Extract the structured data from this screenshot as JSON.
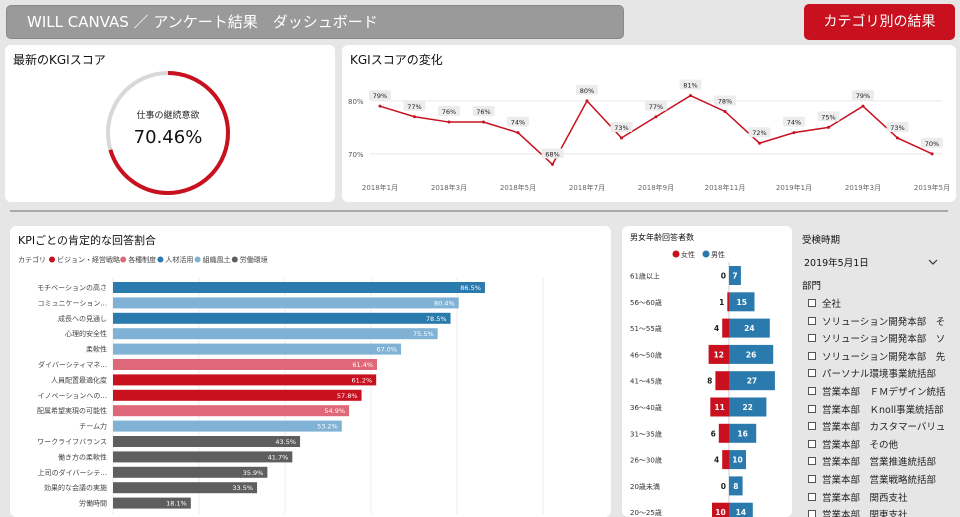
{
  "header": {
    "title": "WILL CANVAS ／ アンケート結果　ダッシュボード",
    "category_button": "カテゴリ別の結果"
  },
  "colors": {
    "accent": "#c8101e",
    "blue": "#2a7aad",
    "light_blue": "#7fb2d4",
    "pink": "#de6877",
    "gray": "#5e5e5e"
  },
  "kgi_latest": {
    "title": "最新のKGIスコア",
    "label": "仕事の継続意欲",
    "value": "70.46%",
    "fraction": 0.7046
  },
  "kgi_trend": {
    "title": "KGIスコアの変化",
    "y_ticks": [
      "80%",
      "70%"
    ],
    "x_ticks": [
      "2018年1月",
      "2018年3月",
      "2018年5月",
      "2018年7月",
      "2018年9月",
      "2018年11月",
      "2019年1月",
      "2019年3月",
      "2019年5月"
    ],
    "chart_data": {
      "type": "line",
      "x": [
        "2018-01",
        "2018-02",
        "2018-03",
        "2018-04",
        "2018-05",
        "2018-06",
        "2018-07",
        "2018-08",
        "2018-09",
        "2018-10",
        "2018-11",
        "2018-12",
        "2019-01",
        "2019-02",
        "2019-03",
        "2019-04",
        "2019-05"
      ],
      "values": [
        79,
        77,
        76,
        76,
        74,
        68,
        80,
        73,
        77,
        81,
        78,
        72,
        74,
        75,
        79,
        73,
        70
      ],
      "labels": [
        "79%",
        "77%",
        "76%",
        "76%",
        "74%",
        "68%",
        "80%",
        "73%",
        "77%",
        "81%",
        "78%",
        "72%",
        "74%",
        "75%",
        "79%",
        "73%",
        "70%"
      ],
      "ylim": [
        66,
        83
      ]
    }
  },
  "kpi": {
    "title": "KPIごとの肯定的な回答割合",
    "legend_title": "カテゴリ",
    "legend": [
      {
        "name": "ビジョン・経営戦略",
        "color": "#c8101e"
      },
      {
        "name": "各種制度",
        "color": "#de6877"
      },
      {
        "name": "人材活用",
        "color": "#2a7aad"
      },
      {
        "name": "組織風土",
        "color": "#7fb2d4"
      },
      {
        "name": "労働環境",
        "color": "#5e5e5e"
      }
    ],
    "chart_data": {
      "type": "bar",
      "categories": [
        "モチベーションの高さ",
        "コミュニケーション...",
        "成長への見通し",
        "心理的安全性",
        "柔軟性",
        "ダイバーシティマネ...",
        "人員配置最適化度",
        "イノベーションへの...",
        "配属希望実現の可能性",
        "チーム力",
        "ワークライフバランス",
        "働き方の柔軟性",
        "上司のダイバーシテ...",
        "効果的な会議の実施",
        "労働時間"
      ],
      "values": [
        86.5,
        80.4,
        78.5,
        75.5,
        67.0,
        61.4,
        61.2,
        57.8,
        54.9,
        53.2,
        43.5,
        41.7,
        35.9,
        33.5,
        18.1
      ],
      "labels": [
        "86.5%",
        "80.4%",
        "78.5%",
        "75.5%",
        "67.0%",
        "61.4%",
        "61.2%",
        "57.8%",
        "54.9%",
        "53.2%",
        "43.5%",
        "41.7%",
        "35.9%",
        "33.5%",
        "18.1%"
      ],
      "colors": [
        "#2a7aad",
        "#7fb2d4",
        "#2a7aad",
        "#7fb2d4",
        "#7fb2d4",
        "#de6877",
        "#c8101e",
        "#c8101e",
        "#de6877",
        "#7fb2d4",
        "#5e5e5e",
        "#5e5e5e",
        "#5e5e5e",
        "#5e5e5e",
        "#5e5e5e"
      ],
      "xlim": [
        0,
        100
      ]
    }
  },
  "age_gender": {
    "title": "男女年齢回答者数",
    "legend": [
      {
        "name": "女性",
        "color": "#c8101e"
      },
      {
        "name": "男性",
        "color": "#2a7aad"
      }
    ],
    "chart_data": {
      "type": "bar",
      "categories": [
        "61歳以上",
        "56〜60歳",
        "51〜55歳",
        "46〜50歳",
        "41〜45歳",
        "36〜40歳",
        "31〜35歳",
        "26〜30歳",
        "20歳未満",
        "20〜25歳"
      ],
      "series": [
        {
          "name": "女性",
          "values": [
            0,
            1,
            4,
            12,
            8,
            11,
            6,
            4,
            0,
            10
          ]
        },
        {
          "name": "男性",
          "values": [
            7,
            15,
            24,
            26,
            27,
            22,
            16,
            10,
            8,
            14
          ]
        }
      ]
    }
  },
  "filters": {
    "period_label": "受検時期",
    "period_value": "2019年5月1日",
    "dept_label": "部門",
    "departments": [
      "全社",
      "ソリューション開発本部　そ",
      "ソリューション開発本部　ソ",
      "ソリューション開発本部　先",
      "パーソナル環境事業統括部",
      "営業本部　ＦＭデザイン統括",
      "営業本部　Ｋnoll事業統括部",
      "営業本部　カスタマーバリュ",
      "営業本部　その他",
      "営業本部　営業推進統括部",
      "営業本部　営業戦略統括部",
      "営業本部　関西支社",
      "営業本部　関東支社"
    ]
  }
}
